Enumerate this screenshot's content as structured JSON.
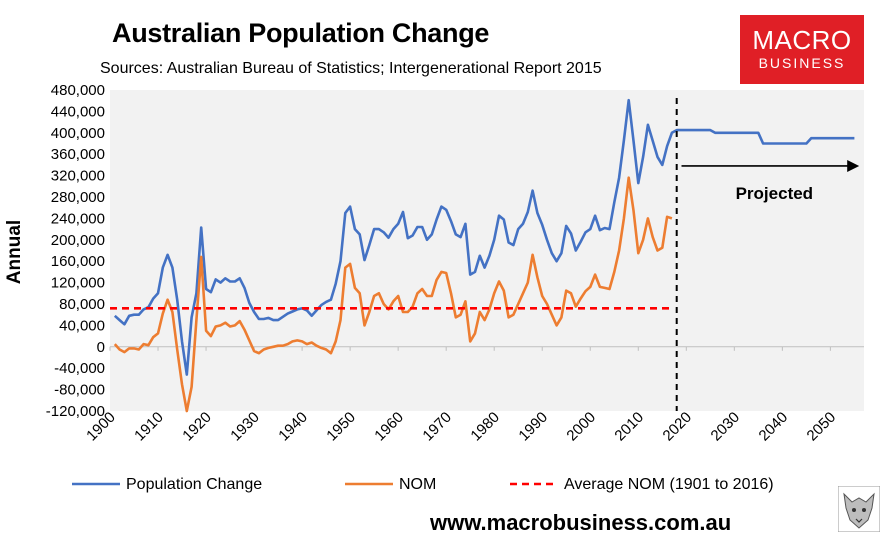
{
  "header": {
    "title": "Australian Population Change",
    "subtitle": "Sources: Australian Bureau of Statistics; Intergenerational Report 2015"
  },
  "logo": {
    "line1": "MACRO",
    "line2": "BUSINESS"
  },
  "footer": {
    "url": "www.macrobusiness.com.au"
  },
  "colors": {
    "population": "#4472c4",
    "nom": "#ed7d31",
    "average": "#ff0000",
    "plot_bg": "#f2f2f2",
    "logo_bg": "#e01f26"
  },
  "chart_data": {
    "type": "line",
    "title": "Australian Population Change",
    "ylabel": "Annual",
    "xlabel": "",
    "xlim": [
      1900,
      2057
    ],
    "ylim": [
      -120000,
      480000
    ],
    "y_ticks": [
      -120000,
      -80000,
      -40000,
      0,
      40000,
      80000,
      120000,
      160000,
      200000,
      240000,
      280000,
      320000,
      360000,
      400000,
      440000,
      480000
    ],
    "y_tick_labels": [
      "-120,000",
      "-80,000",
      "-40,000",
      "0",
      "40,000",
      "80,000",
      "120,000",
      "160,000",
      "200,000",
      "240,000",
      "280,000",
      "320,000",
      "360,000",
      "400,000",
      "440,000",
      "480,000"
    ],
    "x_ticks": [
      1900,
      1910,
      1920,
      1930,
      1940,
      1950,
      1960,
      1970,
      1980,
      1990,
      2000,
      2010,
      2020,
      2030,
      2040,
      2050
    ],
    "x_tick_labels": [
      "1900",
      "1910",
      "1920",
      "1930",
      "1940",
      "1950",
      "1960",
      "1970",
      "1980",
      "1990",
      "2000",
      "2010",
      "2020",
      "2030",
      "2040",
      "2050"
    ],
    "series": [
      {
        "name": "Population Change",
        "points": [
          [
            1901,
            58000
          ],
          [
            1902,
            50000
          ],
          [
            1903,
            42000
          ],
          [
            1904,
            58000
          ],
          [
            1905,
            60000
          ],
          [
            1906,
            60000
          ],
          [
            1907,
            70000
          ],
          [
            1908,
            74000
          ],
          [
            1909,
            90000
          ],
          [
            1910,
            100000
          ],
          [
            1911,
            148000
          ],
          [
            1912,
            172000
          ],
          [
            1913,
            148000
          ],
          [
            1914,
            88000
          ],
          [
            1915,
            10000
          ],
          [
            1916,
            -52000
          ],
          [
            1917,
            55000
          ],
          [
            1918,
            100000
          ],
          [
            1919,
            223000
          ],
          [
            1920,
            108000
          ],
          [
            1921,
            102000
          ],
          [
            1922,
            126000
          ],
          [
            1923,
            120000
          ],
          [
            1924,
            128000
          ],
          [
            1925,
            122000
          ],
          [
            1926,
            122000
          ],
          [
            1927,
            128000
          ],
          [
            1928,
            110000
          ],
          [
            1929,
            82000
          ],
          [
            1930,
            65000
          ],
          [
            1931,
            52000
          ],
          [
            1932,
            52000
          ],
          [
            1933,
            54000
          ],
          [
            1934,
            50000
          ],
          [
            1935,
            50000
          ],
          [
            1936,
            56000
          ],
          [
            1937,
            62000
          ],
          [
            1938,
            66000
          ],
          [
            1939,
            70000
          ],
          [
            1940,
            72000
          ],
          [
            1941,
            68000
          ],
          [
            1942,
            58000
          ],
          [
            1943,
            68000
          ],
          [
            1944,
            78000
          ],
          [
            1945,
            84000
          ],
          [
            1946,
            88000
          ],
          [
            1947,
            118000
          ],
          [
            1948,
            160000
          ],
          [
            1949,
            250000
          ],
          [
            1950,
            262000
          ],
          [
            1951,
            220000
          ],
          [
            1952,
            210000
          ],
          [
            1953,
            162000
          ],
          [
            1954,
            190000
          ],
          [
            1955,
            220000
          ],
          [
            1956,
            220000
          ],
          [
            1957,
            214000
          ],
          [
            1958,
            204000
          ],
          [
            1959,
            220000
          ],
          [
            1960,
            230000
          ],
          [
            1961,
            252000
          ],
          [
            1962,
            203000
          ],
          [
            1963,
            208000
          ],
          [
            1964,
            224000
          ],
          [
            1965,
            224000
          ],
          [
            1966,
            200000
          ],
          [
            1967,
            210000
          ],
          [
            1968,
            238000
          ],
          [
            1969,
            262000
          ],
          [
            1970,
            256000
          ],
          [
            1971,
            235000
          ],
          [
            1972,
            210000
          ],
          [
            1973,
            205000
          ],
          [
            1974,
            230000
          ],
          [
            1975,
            135000
          ],
          [
            1976,
            140000
          ],
          [
            1977,
            170000
          ],
          [
            1978,
            148000
          ],
          [
            1979,
            170000
          ],
          [
            1980,
            200000
          ],
          [
            1981,
            245000
          ],
          [
            1982,
            238000
          ],
          [
            1983,
            195000
          ],
          [
            1984,
            190000
          ],
          [
            1985,
            220000
          ],
          [
            1986,
            230000
          ],
          [
            1987,
            252000
          ],
          [
            1988,
            292000
          ],
          [
            1989,
            250000
          ],
          [
            1990,
            228000
          ],
          [
            1991,
            200000
          ],
          [
            1992,
            175000
          ],
          [
            1993,
            160000
          ],
          [
            1994,
            175000
          ],
          [
            1995,
            226000
          ],
          [
            1996,
            212000
          ],
          [
            1997,
            180000
          ],
          [
            1998,
            196000
          ],
          [
            1999,
            214000
          ],
          [
            2000,
            220000
          ],
          [
            2001,
            245000
          ],
          [
            2002,
            218000
          ],
          [
            2003,
            222000
          ],
          [
            2004,
            220000
          ],
          [
            2005,
            270000
          ],
          [
            2006,
            316000
          ],
          [
            2007,
            386000
          ],
          [
            2008,
            461000
          ],
          [
            2009,
            385000
          ],
          [
            2010,
            306000
          ],
          [
            2011,
            355000
          ],
          [
            2012,
            415000
          ],
          [
            2013,
            385000
          ],
          [
            2014,
            355000
          ],
          [
            2015,
            340000
          ],
          [
            2016,
            375000
          ],
          [
            2017,
            400000
          ],
          [
            2018,
            405000
          ],
          [
            2020,
            405000
          ],
          [
            2025,
            405000
          ],
          [
            2026,
            400000
          ],
          [
            2035,
            400000
          ],
          [
            2036,
            380000
          ],
          [
            2045,
            380000
          ],
          [
            2046,
            390000
          ],
          [
            2055,
            390000
          ]
        ]
      },
      {
        "name": "NOM",
        "points": [
          [
            1901,
            5000
          ],
          [
            1902,
            -5000
          ],
          [
            1903,
            -10000
          ],
          [
            1904,
            -3000
          ],
          [
            1905,
            -3000
          ],
          [
            1906,
            -5000
          ],
          [
            1907,
            5000
          ],
          [
            1908,
            3000
          ],
          [
            1909,
            18000
          ],
          [
            1910,
            25000
          ],
          [
            1911,
            62000
          ],
          [
            1912,
            88000
          ],
          [
            1913,
            65000
          ],
          [
            1914,
            -5000
          ],
          [
            1915,
            -70000
          ],
          [
            1916,
            -120000
          ],
          [
            1917,
            -75000
          ],
          [
            1918,
            50000
          ],
          [
            1919,
            168000
          ],
          [
            1920,
            30000
          ],
          [
            1921,
            20000
          ],
          [
            1922,
            38000
          ],
          [
            1923,
            40000
          ],
          [
            1924,
            45000
          ],
          [
            1925,
            38000
          ],
          [
            1926,
            40000
          ],
          [
            1927,
            48000
          ],
          [
            1928,
            32000
          ],
          [
            1929,
            12000
          ],
          [
            1930,
            -8000
          ],
          [
            1931,
            -12000
          ],
          [
            1932,
            -5000
          ],
          [
            1933,
            -2000
          ],
          [
            1934,
            0
          ],
          [
            1935,
            2000
          ],
          [
            1936,
            2000
          ],
          [
            1937,
            5000
          ],
          [
            1938,
            10000
          ],
          [
            1939,
            12000
          ],
          [
            1940,
            10000
          ],
          [
            1941,
            5000
          ],
          [
            1942,
            8000
          ],
          [
            1943,
            2000
          ],
          [
            1944,
            -2000
          ],
          [
            1945,
            -5000
          ],
          [
            1946,
            -12000
          ],
          [
            1947,
            10000
          ],
          [
            1948,
            50000
          ],
          [
            1949,
            148000
          ],
          [
            1950,
            155000
          ],
          [
            1951,
            110000
          ],
          [
            1952,
            100000
          ],
          [
            1953,
            40000
          ],
          [
            1954,
            65000
          ],
          [
            1955,
            95000
          ],
          [
            1956,
            100000
          ],
          [
            1957,
            80000
          ],
          [
            1958,
            70000
          ],
          [
            1959,
            85000
          ],
          [
            1960,
            95000
          ],
          [
            1961,
            65000
          ],
          [
            1962,
            65000
          ],
          [
            1963,
            75000
          ],
          [
            1964,
            100000
          ],
          [
            1965,
            108000
          ],
          [
            1966,
            95000
          ],
          [
            1967,
            95000
          ],
          [
            1968,
            125000
          ],
          [
            1969,
            140000
          ],
          [
            1970,
            138000
          ],
          [
            1971,
            100000
          ],
          [
            1972,
            55000
          ],
          [
            1973,
            60000
          ],
          [
            1974,
            85000
          ],
          [
            1975,
            10000
          ],
          [
            1976,
            25000
          ],
          [
            1977,
            65000
          ],
          [
            1978,
            50000
          ],
          [
            1979,
            70000
          ],
          [
            1980,
            100000
          ],
          [
            1981,
            122000
          ],
          [
            1982,
            105000
          ],
          [
            1983,
            55000
          ],
          [
            1984,
            60000
          ],
          [
            1985,
            80000
          ],
          [
            1986,
            100000
          ],
          [
            1987,
            120000
          ],
          [
            1988,
            172000
          ],
          [
            1989,
            130000
          ],
          [
            1990,
            95000
          ],
          [
            1991,
            80000
          ],
          [
            1992,
            60000
          ],
          [
            1993,
            40000
          ],
          [
            1994,
            55000
          ],
          [
            1995,
            105000
          ],
          [
            1996,
            100000
          ],
          [
            1997,
            75000
          ],
          [
            1998,
            90000
          ],
          [
            1999,
            104000
          ],
          [
            2000,
            112000
          ],
          [
            2001,
            135000
          ],
          [
            2002,
            112000
          ],
          [
            2003,
            110000
          ],
          [
            2004,
            108000
          ],
          [
            2005,
            140000
          ],
          [
            2006,
            180000
          ],
          [
            2007,
            240000
          ],
          [
            2008,
            316000
          ],
          [
            2009,
            255000
          ],
          [
            2010,
            175000
          ],
          [
            2011,
            200000
          ],
          [
            2012,
            240000
          ],
          [
            2013,
            205000
          ],
          [
            2014,
            180000
          ],
          [
            2015,
            185000
          ],
          [
            2016,
            243000
          ],
          [
            2017,
            240000
          ]
        ]
      },
      {
        "name": "Average NOM (1901 to 2016)",
        "style": "dashed",
        "points": [
          [
            1900,
            72000
          ],
          [
            2017,
            72000
          ]
        ]
      }
    ],
    "projection_marker_x": 2018,
    "annotations": [
      {
        "text": "Projected",
        "arrow_from": 2019,
        "arrow_to": 2056,
        "arrow_y": 338000
      }
    ],
    "legend_position": "bottom"
  }
}
